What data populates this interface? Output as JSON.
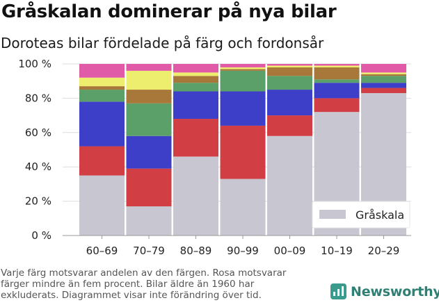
{
  "header": {
    "title": "Gråskalan dominerar på nya bilar",
    "subtitle": "Doroteas bilar fördelade på färg och fordonsår"
  },
  "footnote": {
    "line1": "Varje färg motsvarar andelen av den färgen. Rosa motsvarar",
    "line2": "färger mindre än fem procent. Bilar äldre än 1960 har",
    "line3": "exkluderats. Diagrammet visar inte förändring över tid."
  },
  "brand": {
    "name": "Newsworthy",
    "icon": "newsworthy-logo-icon",
    "color": "#2e7f74"
  },
  "legend": {
    "label": "Gråskala",
    "color": "#c8c6d0",
    "position": "bottom-right"
  },
  "chart_data": {
    "type": "bar",
    "stacked": true,
    "normalized": true,
    "categories": [
      "60–69",
      "70–79",
      "80–89",
      "90–99",
      "00–09",
      "10–19",
      "20–29"
    ],
    "ylim": [
      0,
      100
    ],
    "yticks": [
      0,
      20,
      40,
      60,
      80,
      100
    ],
    "ytick_labels": [
      "0 %",
      "20 %",
      "40 %",
      "60 %",
      "80 %",
      "100 %"
    ],
    "grid": true,
    "series": [
      {
        "name": "Gråskala",
        "color": "#c8c6d0",
        "values": [
          35,
          17,
          46,
          33,
          58,
          72,
          83
        ]
      },
      {
        "color": "#d13f45",
        "values": [
          17,
          22,
          22,
          31,
          12,
          8,
          3
        ]
      },
      {
        "color": "#3e3fc8",
        "values": [
          26,
          19,
          16,
          20,
          15,
          9,
          3
        ]
      },
      {
        "color": "#5ba068",
        "values": [
          7,
          19,
          5,
          12,
          8,
          2,
          4
        ]
      },
      {
        "color": "#a8773a",
        "values": [
          2,
          8,
          4,
          1,
          5,
          7,
          1
        ]
      },
      {
        "color": "#eeee6e",
        "values": [
          5,
          11,
          2,
          1,
          1,
          1,
          1
        ]
      },
      {
        "color": "#e05aa8",
        "values": [
          8,
          4,
          5,
          2,
          1,
          1,
          5
        ]
      }
    ]
  }
}
